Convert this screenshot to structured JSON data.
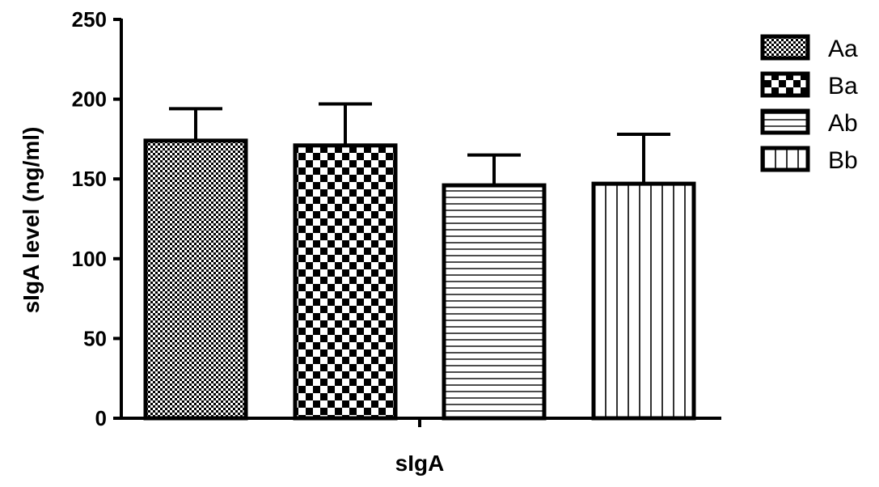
{
  "chart_data": {
    "type": "bar",
    "title": "",
    "xlabel": "sIgA",
    "ylabel": "sIgA level (ng/ml)",
    "ylim": [
      0,
      250
    ],
    "yticks": [
      0,
      50,
      100,
      150,
      200,
      250
    ],
    "categories": [
      "sIgA"
    ],
    "series": [
      {
        "name": "Aa",
        "values": [
          174
        ],
        "error": [
          20
        ],
        "pattern": "fine-checker"
      },
      {
        "name": "Ba",
        "values": [
          171
        ],
        "error": [
          26
        ],
        "pattern": "checker"
      },
      {
        "name": "Ab",
        "values": [
          146
        ],
        "error": [
          19
        ],
        "pattern": "horizontal-lines"
      },
      {
        "name": "Bb",
        "values": [
          147
        ],
        "error": [
          31
        ],
        "pattern": "vertical-lines"
      }
    ],
    "legend_position": "right",
    "grid": false,
    "colors": {
      "stroke": "#000000",
      "fill": "#ffffff"
    }
  }
}
